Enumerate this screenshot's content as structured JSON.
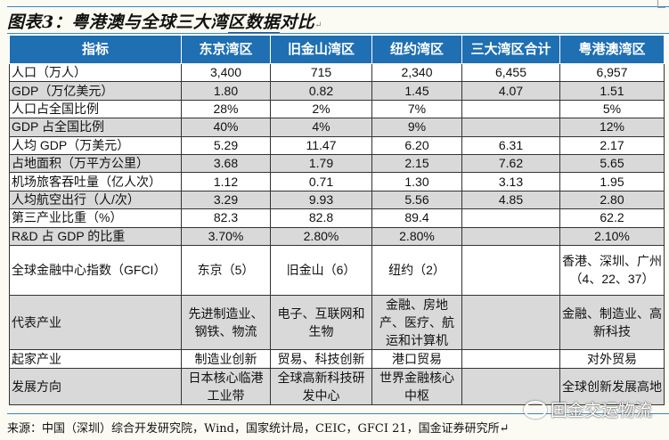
{
  "title": {
    "prefix": "图表3：粤港澳与全球三大湾",
    "underlined": "区数据",
    "suffix": "对比",
    "mark": "↵"
  },
  "table": {
    "headers": [
      "指标",
      "东京湾区",
      "旧金山湾区",
      "纽约湾区",
      "三大湾区合计",
      "粤港澳湾区"
    ],
    "rows": [
      [
        "人口（万人）",
        "3,400",
        "715",
        "2,340",
        "6,455",
        "6,957"
      ],
      [
        "GDP（万亿美元）",
        "1.80",
        "0.82",
        "1.45",
        "4.07",
        "1.51"
      ],
      [
        "人口占全国比例",
        "28%",
        "2%",
        "7%",
        "",
        "5%"
      ],
      [
        "GDP 占全国比例",
        "40%",
        "4%",
        "9%",
        "",
        "12%"
      ],
      [
        "人均 GDP（万美元）",
        "5.29",
        "11.47",
        "6.20",
        "6.31",
        "2.17"
      ],
      [
        "占地面积（万平方公里）",
        "3.68",
        "1.79",
        "2.15",
        "7.62",
        "5.65"
      ],
      [
        "机场旅客吞吐量（亿人次）",
        "1.12",
        "0.71",
        "1.30",
        "3.13",
        "1.95"
      ],
      [
        "人均航空出行（人/次）",
        "3.29",
        "9.93",
        "5.56",
        "4.85",
        "2.80"
      ],
      [
        "第三产业比重（%）",
        "82.3",
        "82.8",
        "89.4",
        "",
        "62.2"
      ],
      [
        "R&D 占 GDP 的比重",
        "3.70%",
        "2.80%",
        "2.80%",
        "",
        "2.10%"
      ],
      [
        "全球金融中心指数（GFCI）",
        "东京（5）",
        "旧金山（6）",
        "纽约（2）",
        "",
        "香港、深圳、广州（4、22、37）"
      ],
      [
        "代表产业",
        "先进制造业、钢铁、物流",
        "电子、互联网和生物",
        "金融、房地产、医疗、航运和计算机",
        "",
        "金融、制造业、高新科技"
      ],
      [
        "起家产业",
        "制造业创新",
        "贸易、科技创新",
        "港口贸易",
        "",
        "对外贸易"
      ],
      [
        "发展方向",
        "日本核心临港工业带",
        "全球高新科技研发中心",
        "世界金融核心中枢",
        "",
        "全球创新发展高地"
      ]
    ]
  },
  "source": "来源：中国（深圳）综合开发研究院，Wind，国家统计局，CEIC，GFCI 21，国金证券研究所↵",
  "watermark": "国金交运物流",
  "colors": {
    "header_bg": "#1f6fb3",
    "stripe": "#d9d9d9",
    "rule": "#3a86c4"
  }
}
